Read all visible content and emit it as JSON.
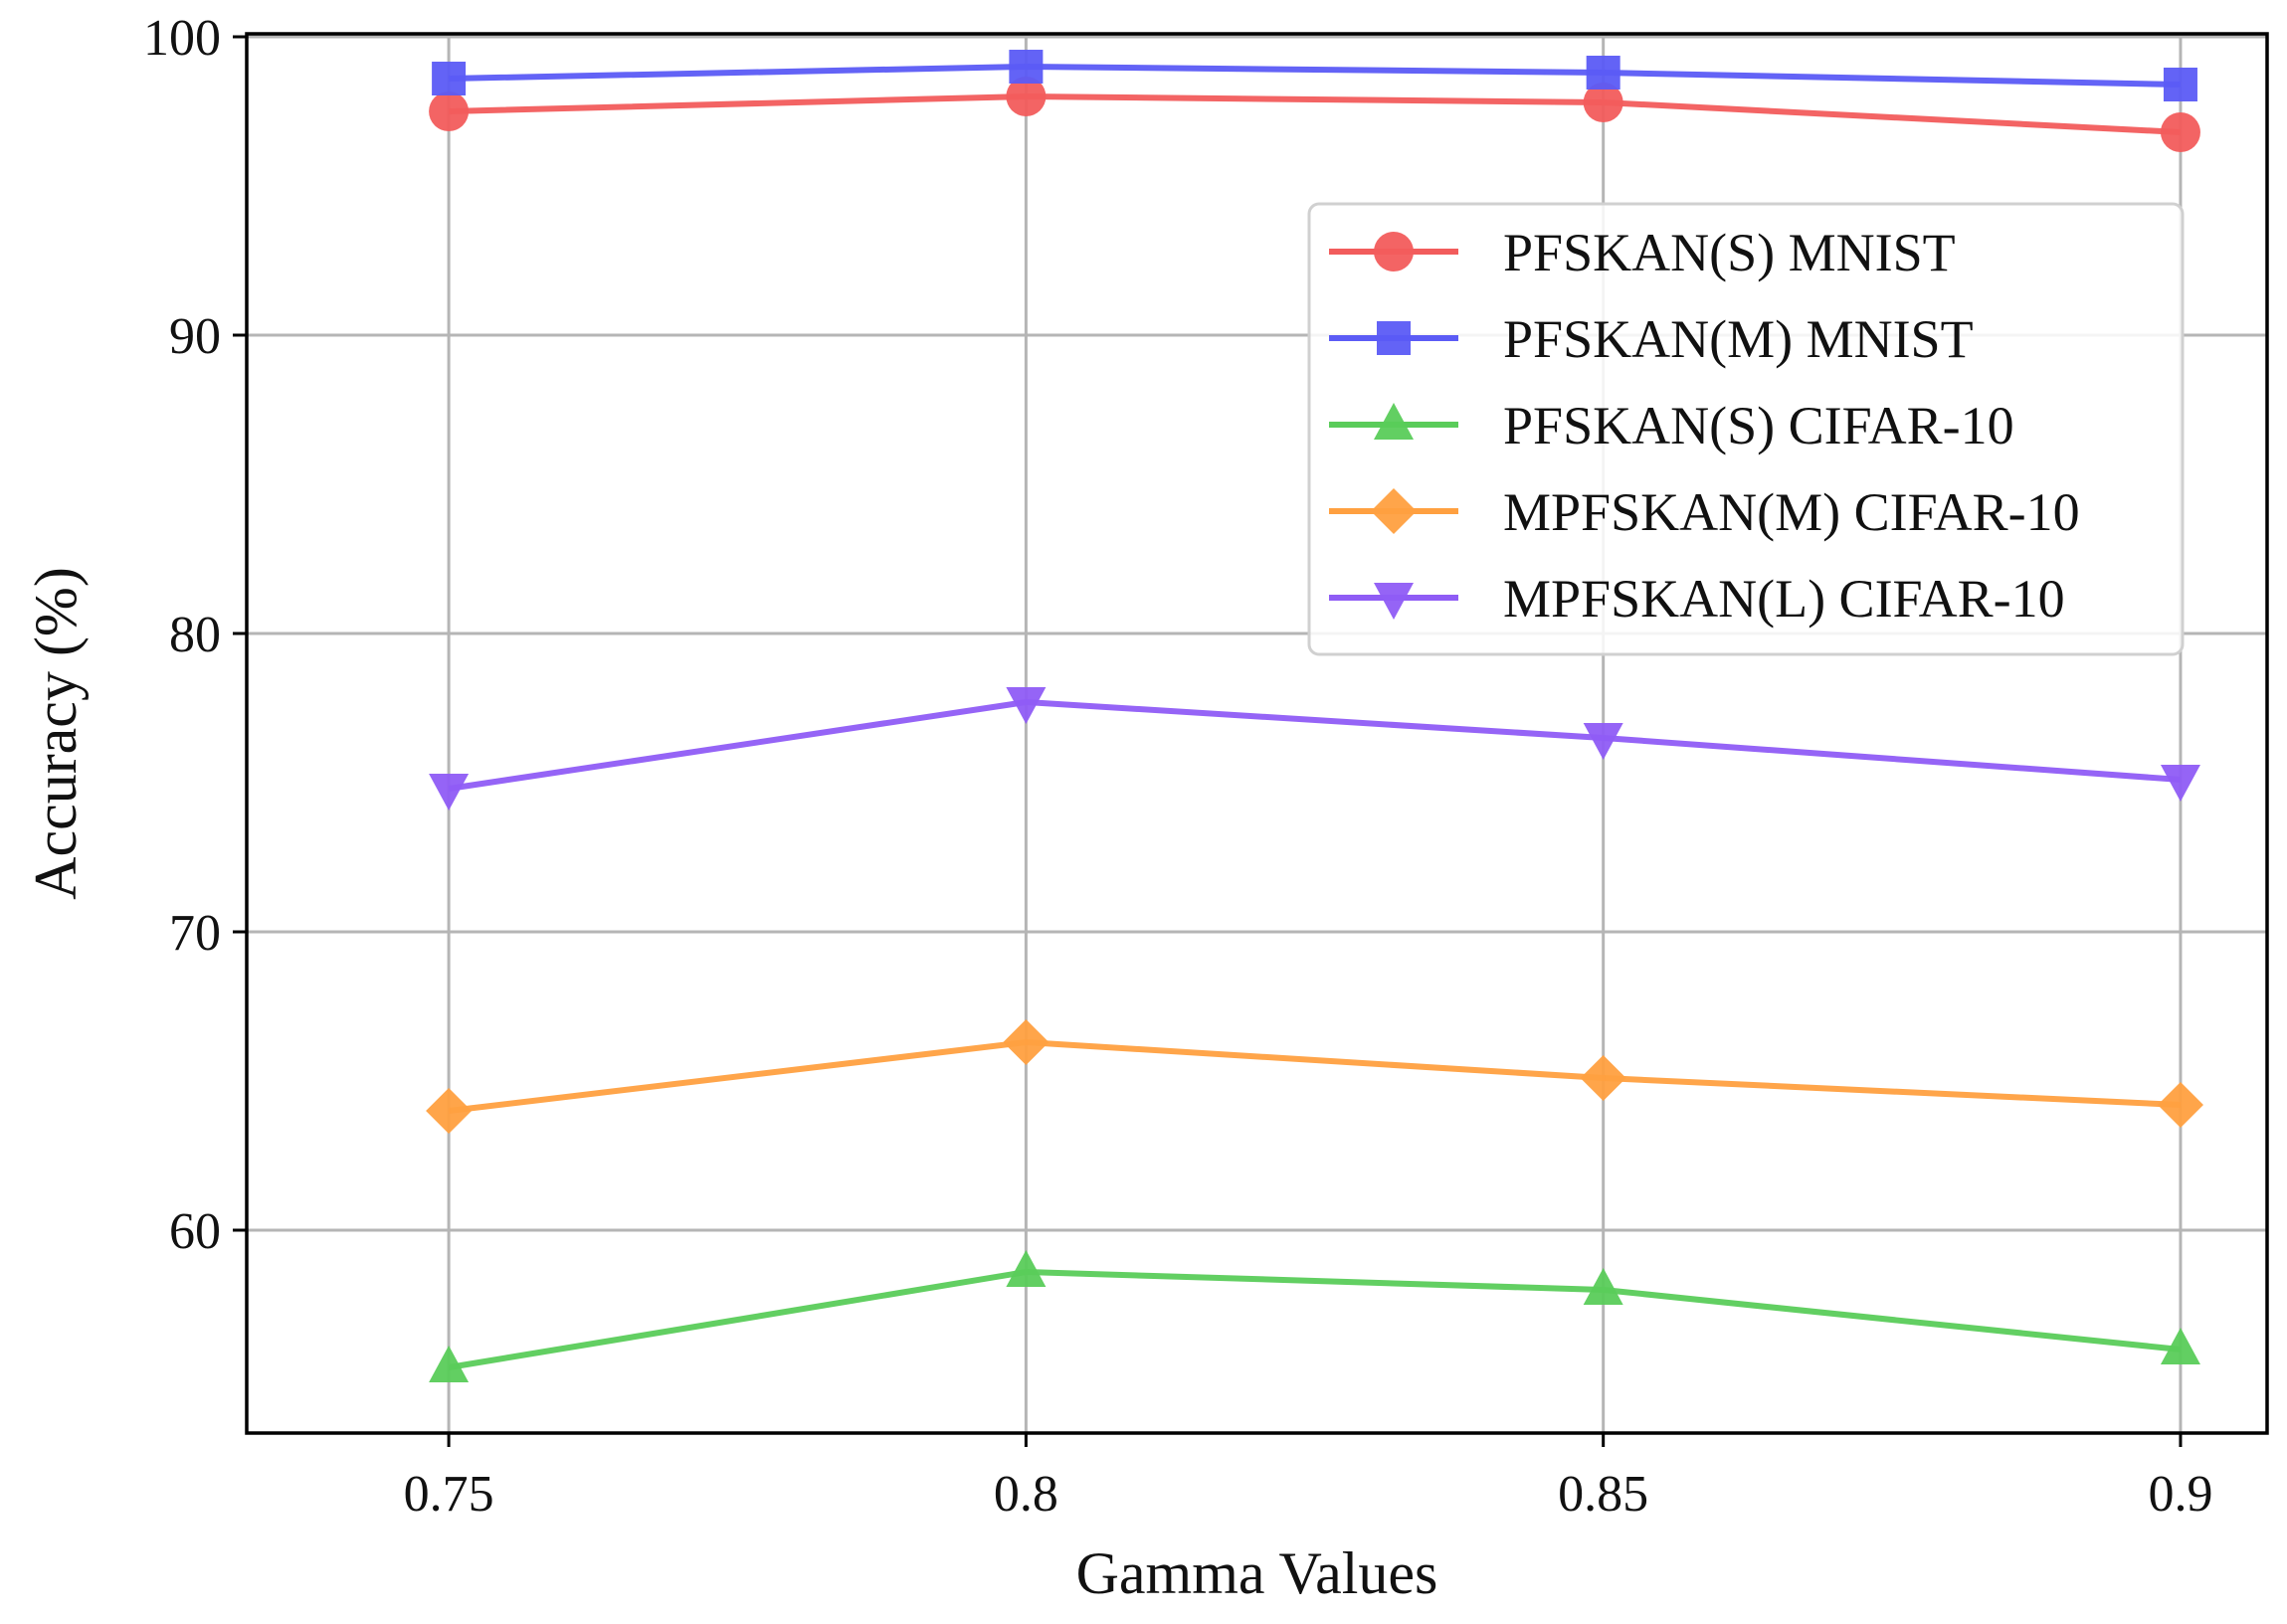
{
  "chart_data": {
    "type": "line",
    "title": "",
    "xlabel": "Gamma Values",
    "ylabel": "Accuracy (%)",
    "x": [
      0.75,
      0.8,
      0.85,
      0.9
    ],
    "x_tick_labels": [
      "0.75",
      "0.8",
      "0.85",
      "0.9"
    ],
    "y_ticks": [
      60,
      70,
      80,
      90,
      100
    ],
    "y_tick_labels": [
      "60",
      "70",
      "80",
      "90",
      "100"
    ],
    "xlim": [
      0.7325,
      0.9075
    ],
    "ylim": [
      53.2,
      100.1
    ],
    "grid": true,
    "legend_position": "upper-right",
    "series": [
      {
        "name": "PFSKAN(S) MNIST",
        "color": "#f25c5c",
        "marker": "circle",
        "values": [
          97.5,
          98.0,
          97.8,
          96.8
        ]
      },
      {
        "name": "PFSKAN(M) MNIST",
        "color": "#5b5bf5",
        "marker": "square",
        "values": [
          98.6,
          99.0,
          98.8,
          98.4
        ]
      },
      {
        "name": "PFSKAN(S) CIFAR-10",
        "color": "#5acc5a",
        "marker": "triangle-up",
        "values": [
          55.4,
          58.6,
          58.0,
          56.0
        ]
      },
      {
        "name": "MPFSKAN(M) CIFAR-10",
        "color": "#ffa040",
        "marker": "diamond",
        "values": [
          64.0,
          66.3,
          65.1,
          64.2
        ]
      },
      {
        "name": "MPFSKAN(L) CIFAR-10",
        "color": "#8f5cf5",
        "marker": "triangle-down",
        "values": [
          74.8,
          77.7,
          76.5,
          75.1
        ]
      }
    ]
  }
}
